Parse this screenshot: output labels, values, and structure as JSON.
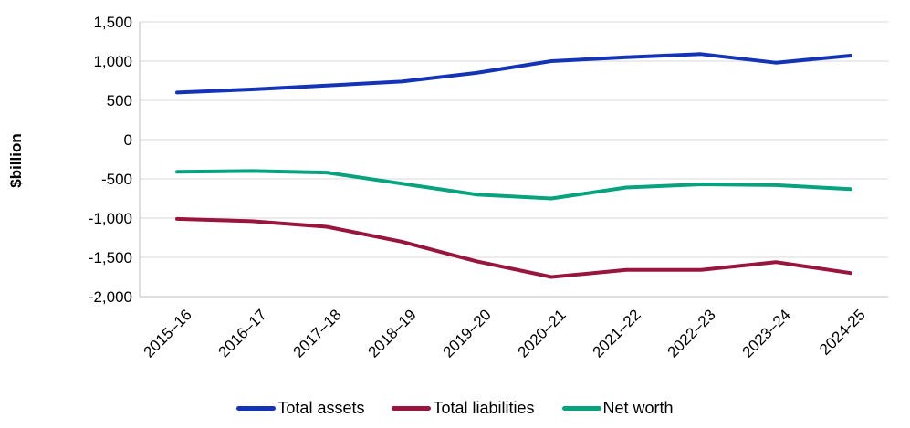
{
  "chart_data": {
    "type": "line",
    "title": "",
    "ylabel": "$billion",
    "xlabel": "",
    "categories": [
      "2015–16",
      "2016–17",
      "2017–18",
      "2018–19",
      "2019–20",
      "2020–21",
      "2021–22",
      "2022–23",
      "2023–24",
      "2024-25"
    ],
    "series": [
      {
        "name": "Total assets",
        "color": "#1434b8",
        "values": [
          600,
          640,
          690,
          740,
          850,
          1000,
          1050,
          1090,
          980,
          1070
        ]
      },
      {
        "name": "Total liabilities",
        "color": "#98153e",
        "values": [
          -1010,
          -1040,
          -1110,
          -1300,
          -1550,
          -1750,
          -1660,
          -1660,
          -1560,
          -1700
        ]
      },
      {
        "name": "Net worth",
        "color": "#07a37f",
        "values": [
          -410,
          -400,
          -420,
          -560,
          -700,
          -750,
          -610,
          -570,
          -580,
          -630
        ]
      }
    ],
    "ylim": [
      -2000,
      1500
    ],
    "ytick_step": 500,
    "ytick_labels": [
      "1,500",
      "1,000",
      "500",
      "0",
      "-500",
      "-1,000",
      "-1,500",
      "-2,000"
    ],
    "grid": "horizontal",
    "legend_position": "bottom",
    "colors": {
      "gridline": "#d9d9d9",
      "axis": "#bfbfbf",
      "text": "#000000",
      "background": "#ffffff"
    }
  }
}
